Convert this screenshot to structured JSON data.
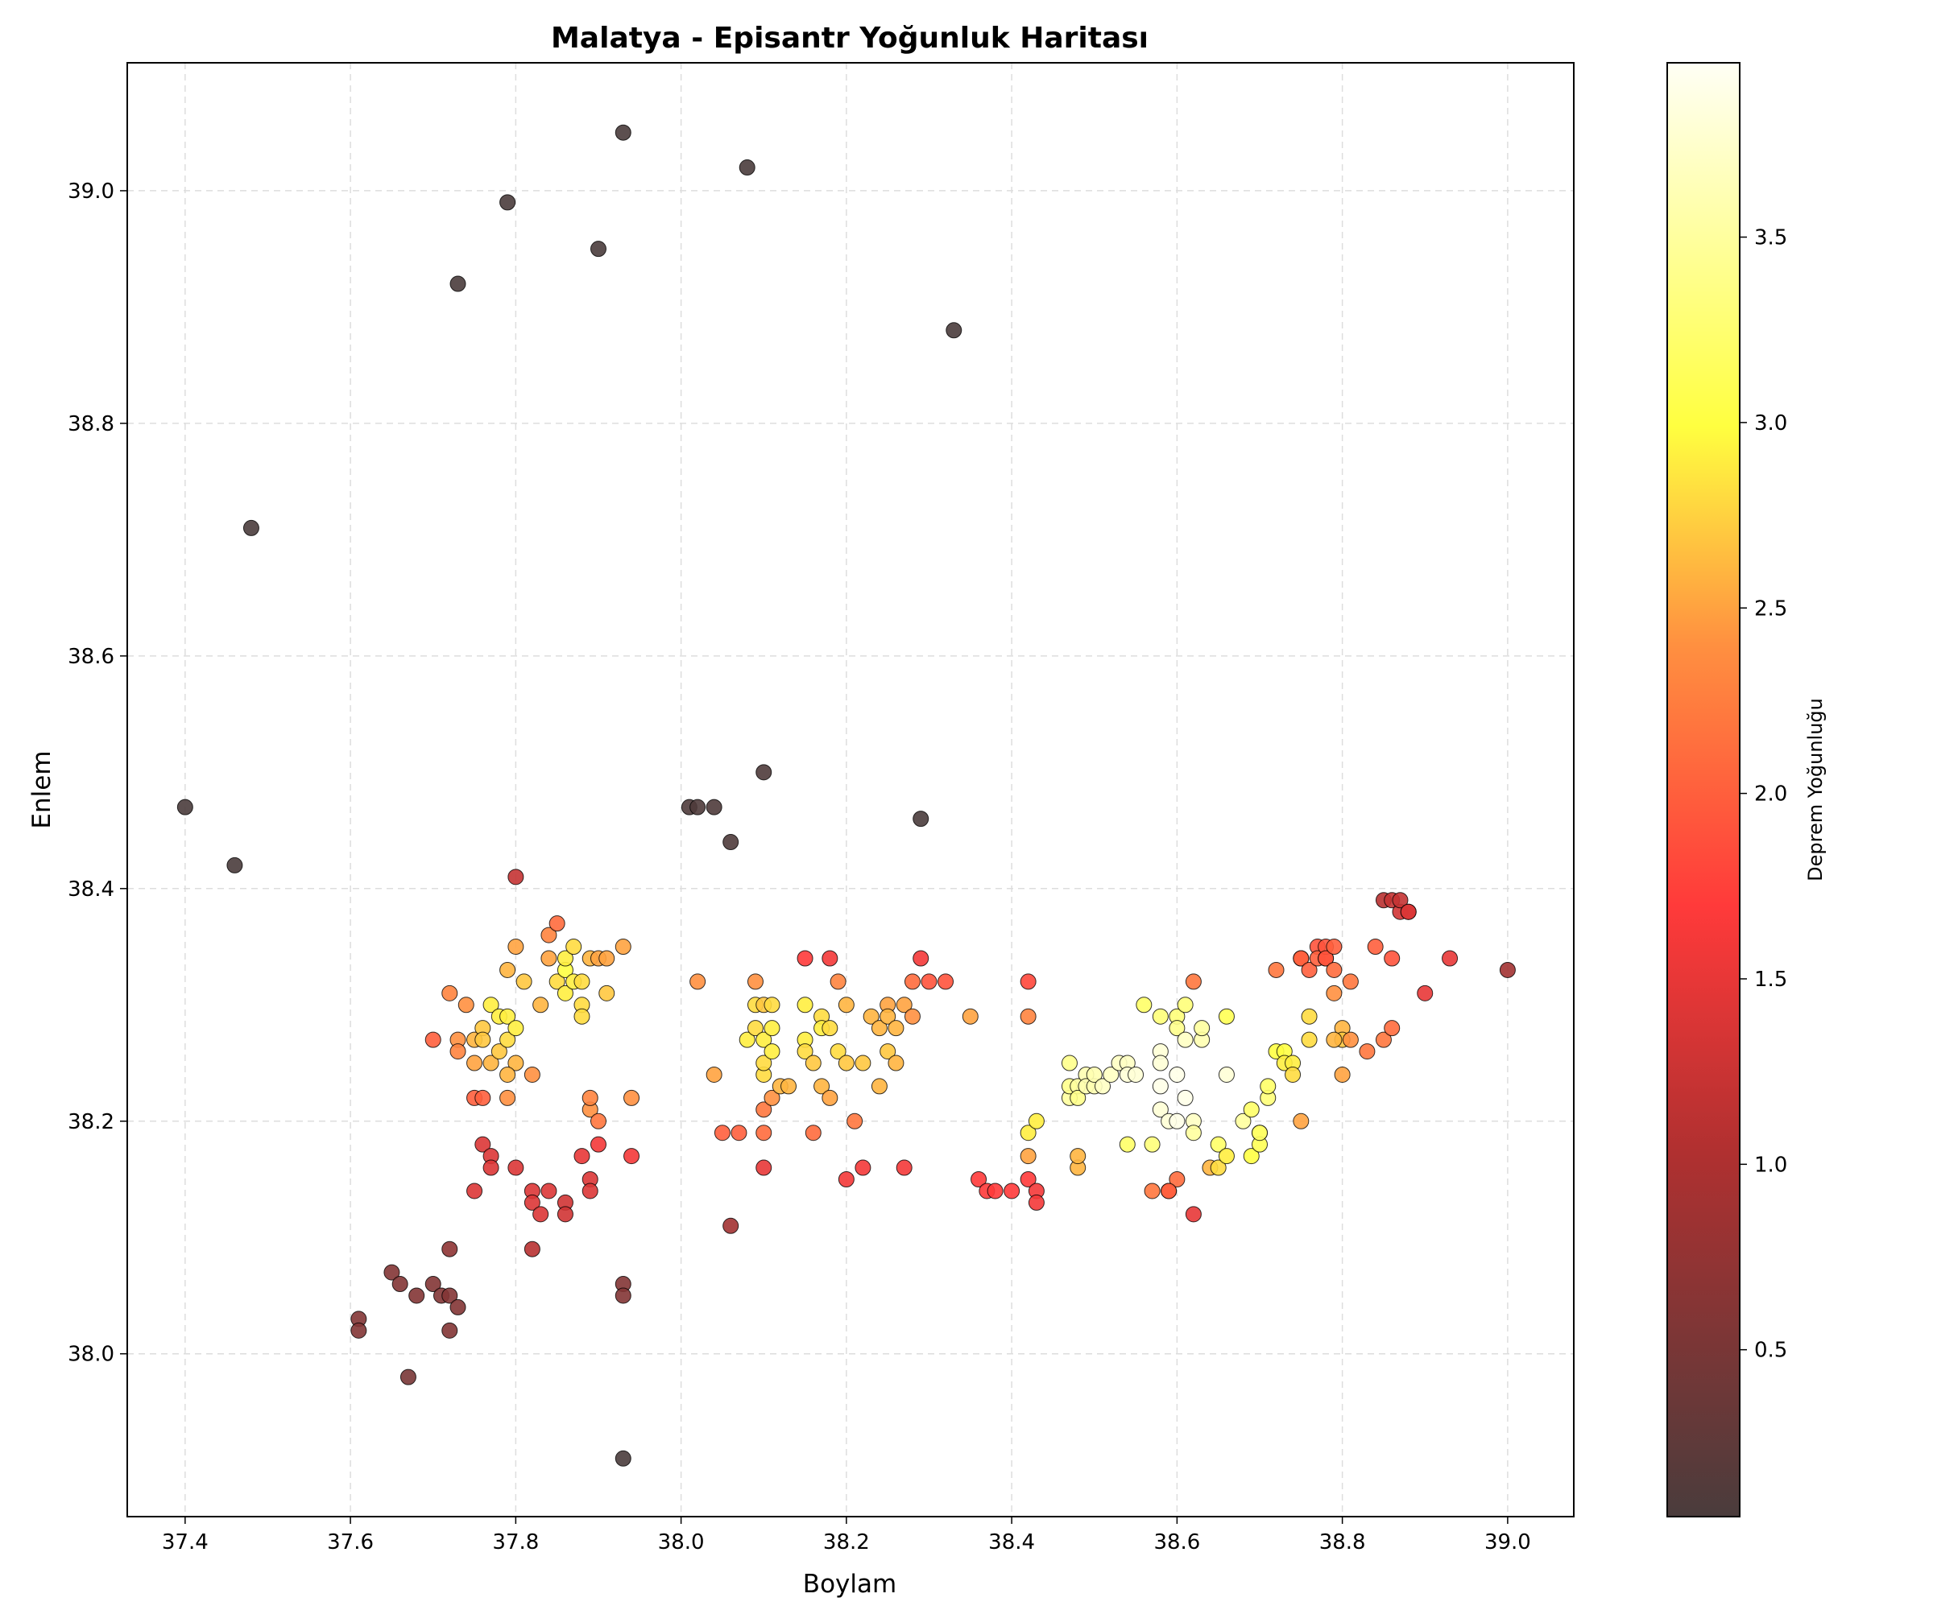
{
  "chart_data": {
    "type": "scatter",
    "title": "Malatya - Episantr Yoğunluk Haritası",
    "xlabel": "Boylam",
    "ylabel": "Enlem",
    "xlim": [
      37.33,
      39.08
    ],
    "ylim": [
      37.86,
      39.11
    ],
    "xticks": [
      37.4,
      37.6,
      37.8,
      38.0,
      38.2,
      38.4,
      38.6,
      38.8,
      39.0
    ],
    "xtick_labels": [
      "37.4",
      "37.6",
      "37.8",
      "38.0",
      "38.2",
      "38.4",
      "38.6",
      "38.8",
      "39.0"
    ],
    "yticks": [
      38.0,
      38.2,
      38.4,
      38.6,
      38.8,
      39.0
    ],
    "ytick_labels": [
      "38.0",
      "38.2",
      "38.4",
      "38.6",
      "38.8",
      "39.0"
    ],
    "grid": true,
    "colormap": "hot",
    "colorbar": {
      "label": "Deprem Yoğunluğu",
      "range": [
        0.05,
        3.97
      ],
      "ticks": [
        0.5,
        1.0,
        1.5,
        2.0,
        2.5,
        3.0,
        3.5
      ],
      "tick_labels": [
        "0.5",
        "1.0",
        "1.5",
        "2.0",
        "2.5",
        "3.0",
        "3.5"
      ]
    },
    "points": [
      [
        37.93,
        39.05,
        0.05
      ],
      [
        38.08,
        39.02,
        0.05
      ],
      [
        37.79,
        38.99,
        0.05
      ],
      [
        37.9,
        38.95,
        0.05
      ],
      [
        37.73,
        38.92,
        0.05
      ],
      [
        38.33,
        38.88,
        0.05
      ],
      [
        37.48,
        38.71,
        0.05
      ],
      [
        37.4,
        38.47,
        0.05
      ],
      [
        37.46,
        38.42,
        0.05
      ],
      [
        38.01,
        38.47,
        0.1
      ],
      [
        38.02,
        38.47,
        0.1
      ],
      [
        38.04,
        38.47,
        0.1
      ],
      [
        38.1,
        38.5,
        0.1
      ],
      [
        38.06,
        38.44,
        0.1
      ],
      [
        38.29,
        38.46,
        0.05
      ],
      [
        37.93,
        37.91,
        0.05
      ],
      [
        37.61,
        38.03,
        0.6
      ],
      [
        37.61,
        38.02,
        0.6
      ],
      [
        37.65,
        38.07,
        0.6
      ],
      [
        37.66,
        38.06,
        0.6
      ],
      [
        37.67,
        37.98,
        0.5
      ],
      [
        37.68,
        38.05,
        0.6
      ],
      [
        37.7,
        38.06,
        0.6
      ],
      [
        37.71,
        38.05,
        0.6
      ],
      [
        37.72,
        38.05,
        0.6
      ],
      [
        37.72,
        38.02,
        0.6
      ],
      [
        37.73,
        38.04,
        0.6
      ],
      [
        37.72,
        38.09,
        0.7
      ],
      [
        37.93,
        38.06,
        0.6
      ],
      [
        37.93,
        38.05,
        0.6
      ],
      [
        38.06,
        38.11,
        0.9
      ],
      [
        37.75,
        38.14,
        1.4
      ],
      [
        37.76,
        38.18,
        1.4
      ],
      [
        37.77,
        38.17,
        1.4
      ],
      [
        37.77,
        38.16,
        1.4
      ],
      [
        37.8,
        38.16,
        1.4
      ],
      [
        37.82,
        38.14,
        1.4
      ],
      [
        37.82,
        38.13,
        1.4
      ],
      [
        37.83,
        38.12,
        1.4
      ],
      [
        37.84,
        38.14,
        1.4
      ],
      [
        37.86,
        38.13,
        1.3
      ],
      [
        37.86,
        38.12,
        1.3
      ],
      [
        37.82,
        38.09,
        1.1
      ],
      [
        37.89,
        38.15,
        1.4
      ],
      [
        37.89,
        38.14,
        1.4
      ],
      [
        37.88,
        38.17,
        1.5
      ],
      [
        37.9,
        38.18,
        1.6
      ],
      [
        37.94,
        38.17,
        1.6
      ],
      [
        37.8,
        38.41,
        1.2
      ],
      [
        37.72,
        38.31,
        2.3
      ],
      [
        37.73,
        38.27,
        2.4
      ],
      [
        37.73,
        38.26,
        2.3
      ],
      [
        37.7,
        38.27,
        2.0
      ],
      [
        37.74,
        38.3,
        2.4
      ],
      [
        37.75,
        38.25,
        2.5
      ],
      [
        37.75,
        38.27,
        2.6
      ],
      [
        37.76,
        38.28,
        2.7
      ],
      [
        37.76,
        38.27,
        2.7
      ],
      [
        37.77,
        38.3,
        2.9
      ],
      [
        37.77,
        38.25,
        2.6
      ],
      [
        37.78,
        38.26,
        2.7
      ],
      [
        37.78,
        38.29,
        2.9
      ],
      [
        37.79,
        38.33,
        2.6
      ],
      [
        37.79,
        38.27,
        2.8
      ],
      [
        37.79,
        38.29,
        2.9
      ],
      [
        37.8,
        38.28,
        2.9
      ],
      [
        37.8,
        38.25,
        2.6
      ],
      [
        37.79,
        38.24,
        2.6
      ],
      [
        37.79,
        38.22,
        2.4
      ],
      [
        37.75,
        38.22,
        2.0
      ],
      [
        37.76,
        38.22,
        2.0
      ],
      [
        37.82,
        38.24,
        2.4
      ],
      [
        37.81,
        38.32,
        2.7
      ],
      [
        37.83,
        38.3,
        2.6
      ],
      [
        37.84,
        38.36,
        2.3
      ],
      [
        37.84,
        38.34,
        2.5
      ],
      [
        37.85,
        38.32,
        2.8
      ],
      [
        37.86,
        38.31,
        2.9
      ],
      [
        37.86,
        38.33,
        3.0
      ],
      [
        37.86,
        38.34,
        2.9
      ],
      [
        37.87,
        38.35,
        2.8
      ],
      [
        37.87,
        38.32,
        2.9
      ],
      [
        37.88,
        38.3,
        2.8
      ],
      [
        37.88,
        38.29,
        2.8
      ],
      [
        37.88,
        38.32,
        2.8
      ],
      [
        37.89,
        38.34,
        2.6
      ],
      [
        37.89,
        38.21,
        2.4
      ],
      [
        37.89,
        38.22,
        2.3
      ],
      [
        37.9,
        38.2,
        2.2
      ],
      [
        37.9,
        38.34,
        2.5
      ],
      [
        37.91,
        38.34,
        2.5
      ],
      [
        37.91,
        38.31,
        2.7
      ],
      [
        37.93,
        38.35,
        2.5
      ],
      [
        37.94,
        38.22,
        2.4
      ],
      [
        37.8,
        38.35,
        2.5
      ],
      [
        37.85,
        38.37,
        2.1
      ],
      [
        38.02,
        38.32,
        2.4
      ],
      [
        38.04,
        38.24,
        2.5
      ],
      [
        38.05,
        38.19,
        2.0
      ],
      [
        38.07,
        38.19,
        2.0
      ],
      [
        38.08,
        38.27,
        2.9
      ],
      [
        38.09,
        38.3,
        2.8
      ],
      [
        38.09,
        38.28,
        2.8
      ],
      [
        38.1,
        38.3,
        2.7
      ],
      [
        38.1,
        38.27,
        2.9
      ],
      [
        38.1,
        38.24,
        2.8
      ],
      [
        38.1,
        38.25,
        2.8
      ],
      [
        38.09,
        38.32,
        2.4
      ],
      [
        38.1,
        38.21,
        2.2
      ],
      [
        38.1,
        38.19,
        2.1
      ],
      [
        38.11,
        38.26,
        2.9
      ],
      [
        38.11,
        38.28,
        2.9
      ],
      [
        38.11,
        38.3,
        2.8
      ],
      [
        38.11,
        38.22,
        2.4
      ],
      [
        38.12,
        38.23,
        2.6
      ],
      [
        38.13,
        38.23,
        2.6
      ],
      [
        38.15,
        38.3,
        2.9
      ],
      [
        38.15,
        38.27,
        2.9
      ],
      [
        38.15,
        38.26,
        2.8
      ],
      [
        38.16,
        38.25,
        2.7
      ],
      [
        38.16,
        38.19,
        2.1
      ],
      [
        38.17,
        38.29,
        2.8
      ],
      [
        38.17,
        38.28,
        2.9
      ],
      [
        38.17,
        38.23,
        2.6
      ],
      [
        38.18,
        38.22,
        2.5
      ],
      [
        38.18,
        38.28,
        2.8
      ],
      [
        38.19,
        38.26,
        2.8
      ],
      [
        38.19,
        38.32,
        2.3
      ],
      [
        38.2,
        38.25,
        2.7
      ],
      [
        38.2,
        38.3,
        2.6
      ],
      [
        38.22,
        38.25,
        2.7
      ],
      [
        38.21,
        38.2,
        2.2
      ],
      [
        38.23,
        38.29,
        2.6
      ],
      [
        38.24,
        38.28,
        2.6
      ],
      [
        38.25,
        38.3,
        2.5
      ],
      [
        38.25,
        38.29,
        2.6
      ],
      [
        38.25,
        38.26,
        2.7
      ],
      [
        38.26,
        38.28,
        2.6
      ],
      [
        38.24,
        38.23,
        2.6
      ],
      [
        38.26,
        38.25,
        2.6
      ],
      [
        38.27,
        38.3,
        2.5
      ],
      [
        38.28,
        38.29,
        2.4
      ],
      [
        38.28,
        38.32,
        2.1
      ],
      [
        38.3,
        38.32,
        1.9
      ],
      [
        38.32,
        38.32,
        1.9
      ],
      [
        38.35,
        38.29,
        2.5
      ],
      [
        38.15,
        38.34,
        1.7
      ],
      [
        38.18,
        38.34,
        1.6
      ],
      [
        38.29,
        38.34,
        1.6
      ],
      [
        38.1,
        38.16,
        1.5
      ],
      [
        38.2,
        38.15,
        1.6
      ],
      [
        38.22,
        38.16,
        1.6
      ],
      [
        38.27,
        38.16,
        1.6
      ],
      [
        38.36,
        38.15,
        1.7
      ],
      [
        38.37,
        38.14,
        1.7
      ],
      [
        38.38,
        38.14,
        1.7
      ],
      [
        38.4,
        38.14,
        1.7
      ],
      [
        38.42,
        38.15,
        1.7
      ],
      [
        38.43,
        38.14,
        1.6
      ],
      [
        38.43,
        38.13,
        1.6
      ],
      [
        38.42,
        38.32,
        1.8
      ],
      [
        38.42,
        38.29,
        2.3
      ],
      [
        38.42,
        38.17,
        2.5
      ],
      [
        38.42,
        38.19,
        2.9
      ],
      [
        38.43,
        38.2,
        2.9
      ],
      [
        38.47,
        38.25,
        3.4
      ],
      [
        38.47,
        38.22,
        3.5
      ],
      [
        38.47,
        38.23,
        3.4
      ],
      [
        38.48,
        38.23,
        3.5
      ],
      [
        38.48,
        38.22,
        3.4
      ],
      [
        38.48,
        38.16,
        2.6
      ],
      [
        38.48,
        38.17,
        2.6
      ],
      [
        38.49,
        38.24,
        3.6
      ],
      [
        38.49,
        38.23,
        3.6
      ],
      [
        38.5,
        38.23,
        3.6
      ],
      [
        38.5,
        38.24,
        3.6
      ],
      [
        38.51,
        38.23,
        3.7
      ],
      [
        38.52,
        38.24,
        3.7
      ],
      [
        38.53,
        38.25,
        3.7
      ],
      [
        38.54,
        38.25,
        3.7
      ],
      [
        38.54,
        38.24,
        3.8
      ],
      [
        38.55,
        38.24,
        3.8
      ],
      [
        38.54,
        38.18,
        3.2
      ],
      [
        38.56,
        38.3,
        3.2
      ],
      [
        38.57,
        38.18,
        3.3
      ],
      [
        38.58,
        38.26,
        3.8
      ],
      [
        38.58,
        38.25,
        3.8
      ],
      [
        38.58,
        38.23,
        3.9
      ],
      [
        38.58,
        38.21,
        3.8
      ],
      [
        38.58,
        38.29,
        3.3
      ],
      [
        38.59,
        38.2,
        3.8
      ],
      [
        38.6,
        38.29,
        3.3
      ],
      [
        38.6,
        38.28,
        3.4
      ],
      [
        38.6,
        38.24,
        3.9
      ],
      [
        38.6,
        38.2,
        3.9
      ],
      [
        38.61,
        38.22,
        3.9
      ],
      [
        38.61,
        38.27,
        3.7
      ],
      [
        38.61,
        38.3,
        3.3
      ],
      [
        38.62,
        38.2,
        3.7
      ],
      [
        38.62,
        38.19,
        3.5
      ],
      [
        38.62,
        38.32,
        2.2
      ],
      [
        38.63,
        38.27,
        3.6
      ],
      [
        38.63,
        38.28,
        3.5
      ],
      [
        38.64,
        38.16,
        2.6
      ],
      [
        38.65,
        38.16,
        2.8
      ],
      [
        38.65,
        38.18,
        3.2
      ],
      [
        38.66,
        38.17,
        2.9
      ],
      [
        38.66,
        38.24,
        3.8
      ],
      [
        38.66,
        38.29,
        3.1
      ],
      [
        38.68,
        38.2,
        3.5
      ],
      [
        38.69,
        38.17,
        3.0
      ],
      [
        38.69,
        38.21,
        3.2
      ],
      [
        38.7,
        38.19,
        3.1
      ],
      [
        38.7,
        38.18,
        3.1
      ],
      [
        38.7,
        38.19,
        3.2
      ],
      [
        38.71,
        38.22,
        3.3
      ],
      [
        38.71,
        38.23,
        3.2
      ],
      [
        38.57,
        38.14,
        2.2
      ],
      [
        38.59,
        38.14,
        2.0
      ],
      [
        38.6,
        38.15,
        2.1
      ],
      [
        38.59,
        38.14,
        2.0
      ],
      [
        38.62,
        38.12,
        1.5
      ],
      [
        38.72,
        38.33,
        2.2
      ],
      [
        38.72,
        38.26,
        3.0
      ],
      [
        38.73,
        38.26,
        3.0
      ],
      [
        38.73,
        38.25,
        2.9
      ],
      [
        38.74,
        38.25,
        2.9
      ],
      [
        38.74,
        38.24,
        2.8
      ],
      [
        38.75,
        38.34,
        2.1
      ],
      [
        38.75,
        38.34,
        2.0
      ],
      [
        38.75,
        38.2,
        2.5
      ],
      [
        38.76,
        38.29,
        2.8
      ],
      [
        38.76,
        38.27,
        2.8
      ],
      [
        38.76,
        38.33,
        2.0
      ],
      [
        38.77,
        38.35,
        1.9
      ],
      [
        38.77,
        38.34,
        2.0
      ],
      [
        38.78,
        38.34,
        2.0
      ],
      [
        38.78,
        38.35,
        1.9
      ],
      [
        38.78,
        38.34,
        1.9
      ],
      [
        38.79,
        38.31,
        2.4
      ],
      [
        38.79,
        38.33,
        2.1
      ],
      [
        38.79,
        38.35,
        2.0
      ],
      [
        38.8,
        38.28,
        2.6
      ],
      [
        38.8,
        38.27,
        2.7
      ],
      [
        38.8,
        38.24,
        2.5
      ],
      [
        38.79,
        38.27,
        2.6
      ],
      [
        38.81,
        38.27,
        2.4
      ],
      [
        38.81,
        38.32,
        2.2
      ],
      [
        38.83,
        38.26,
        2.2
      ],
      [
        38.84,
        38.35,
        2.0
      ],
      [
        38.85,
        38.27,
        2.2
      ],
      [
        38.86,
        38.28,
        2.1
      ],
      [
        38.86,
        38.34,
        1.9
      ],
      [
        38.85,
        38.39,
        1.1
      ],
      [
        38.86,
        38.39,
        1.2
      ],
      [
        38.87,
        38.38,
        1.3
      ],
      [
        38.87,
        38.39,
        1.2
      ],
      [
        38.88,
        38.38,
        1.3
      ],
      [
        38.88,
        38.38,
        1.4
      ],
      [
        38.9,
        38.31,
        1.5
      ],
      [
        38.93,
        38.34,
        1.5
      ],
      [
        39.0,
        38.33,
        0.9
      ]
    ]
  }
}
